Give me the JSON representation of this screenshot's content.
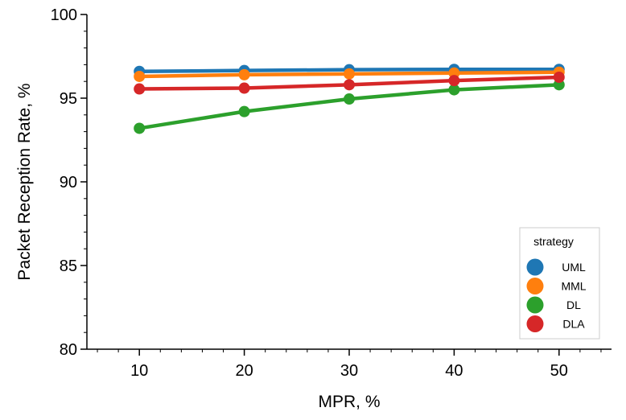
{
  "chart_data": {
    "type": "line",
    "title": "",
    "xlabel": "MPR, %",
    "ylabel": "Packet Reception Rate, %",
    "x": [
      10,
      20,
      30,
      40,
      50
    ],
    "xticks": [
      "10",
      "20",
      "30",
      "40",
      "50"
    ],
    "xlim": [
      5,
      55
    ],
    "ylim": [
      80,
      100
    ],
    "yticks": [
      "80",
      "85",
      "90",
      "95",
      "100"
    ],
    "grid": false,
    "legend": {
      "title": "strategy",
      "placement": "bottom-right"
    },
    "series": [
      {
        "name": "UML",
        "color": "#1f77b4",
        "values": [
          96.6,
          96.65,
          96.7,
          96.72,
          96.72
        ]
      },
      {
        "name": "MML",
        "color": "#ff7f0e",
        "values": [
          96.3,
          96.4,
          96.45,
          96.5,
          96.55
        ]
      },
      {
        "name": "DL",
        "color": "#2ca02c",
        "values": [
          93.2,
          94.2,
          94.95,
          95.5,
          95.8
        ]
      },
      {
        "name": "DLA",
        "color": "#d62728",
        "values": [
          95.55,
          95.6,
          95.8,
          96.05,
          96.25
        ]
      }
    ]
  }
}
